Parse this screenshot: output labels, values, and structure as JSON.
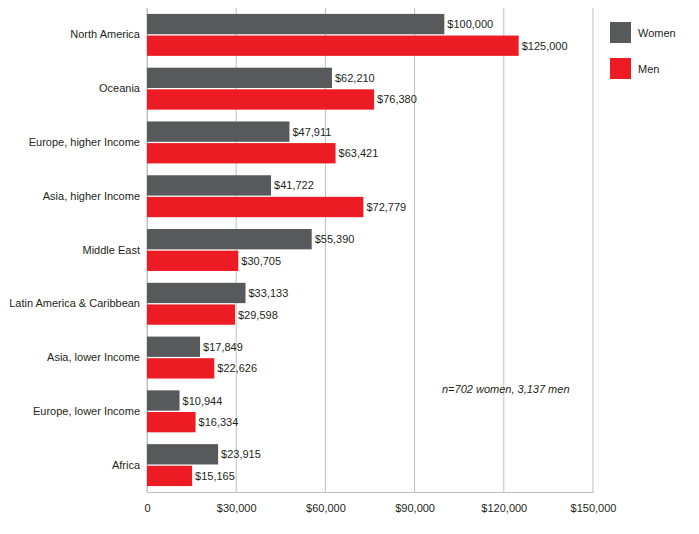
{
  "chart_data": {
    "type": "bar",
    "orientation": "horizontal",
    "categories": [
      "North America",
      "Oceania",
      "Europe, higher Income",
      "Asia, higher Income",
      "Middle East",
      "Latin America & Caribbean",
      "Asia, lower Income",
      "Europe, lower Income",
      "Africa"
    ],
    "series": [
      {
        "name": "Women",
        "color": "#58595b",
        "values": [
          100000,
          62210,
          47911,
          41722,
          55390,
          33133,
          17849,
          10944,
          23915
        ],
        "value_labels": [
          "$100,000",
          "$62,210",
          "$47,911",
          "$41,722",
          "$55,390",
          "$33,133",
          "$17,849",
          "$10,944",
          "$23,915"
        ]
      },
      {
        "name": "Men",
        "color": "#ed1c24",
        "values": [
          125000,
          76380,
          63421,
          72779,
          30705,
          29598,
          22626,
          16334,
          15165
        ],
        "value_labels": [
          "$125,000",
          "$76,380",
          "$63,421",
          "$72,779",
          "$30,705",
          "$29,598",
          "$22,626",
          "$16,334",
          "$15,165"
        ]
      }
    ],
    "xlim": [
      0,
      150000
    ],
    "xticks": [
      0,
      {
        "value": 30000,
        "label": "$30,000"
      },
      {
        "value": 60000,
        "label": "$60,000"
      },
      {
        "value": 90000,
        "label": "$90,000"
      },
      {
        "value": 120000,
        "label": "$120,000"
      },
      {
        "value": 150000,
        "label": "$150,000"
      }
    ],
    "grid": true,
    "data_labels": true,
    "legend": "right",
    "annotations": [
      "n=702 women, 3,137 men"
    ]
  }
}
